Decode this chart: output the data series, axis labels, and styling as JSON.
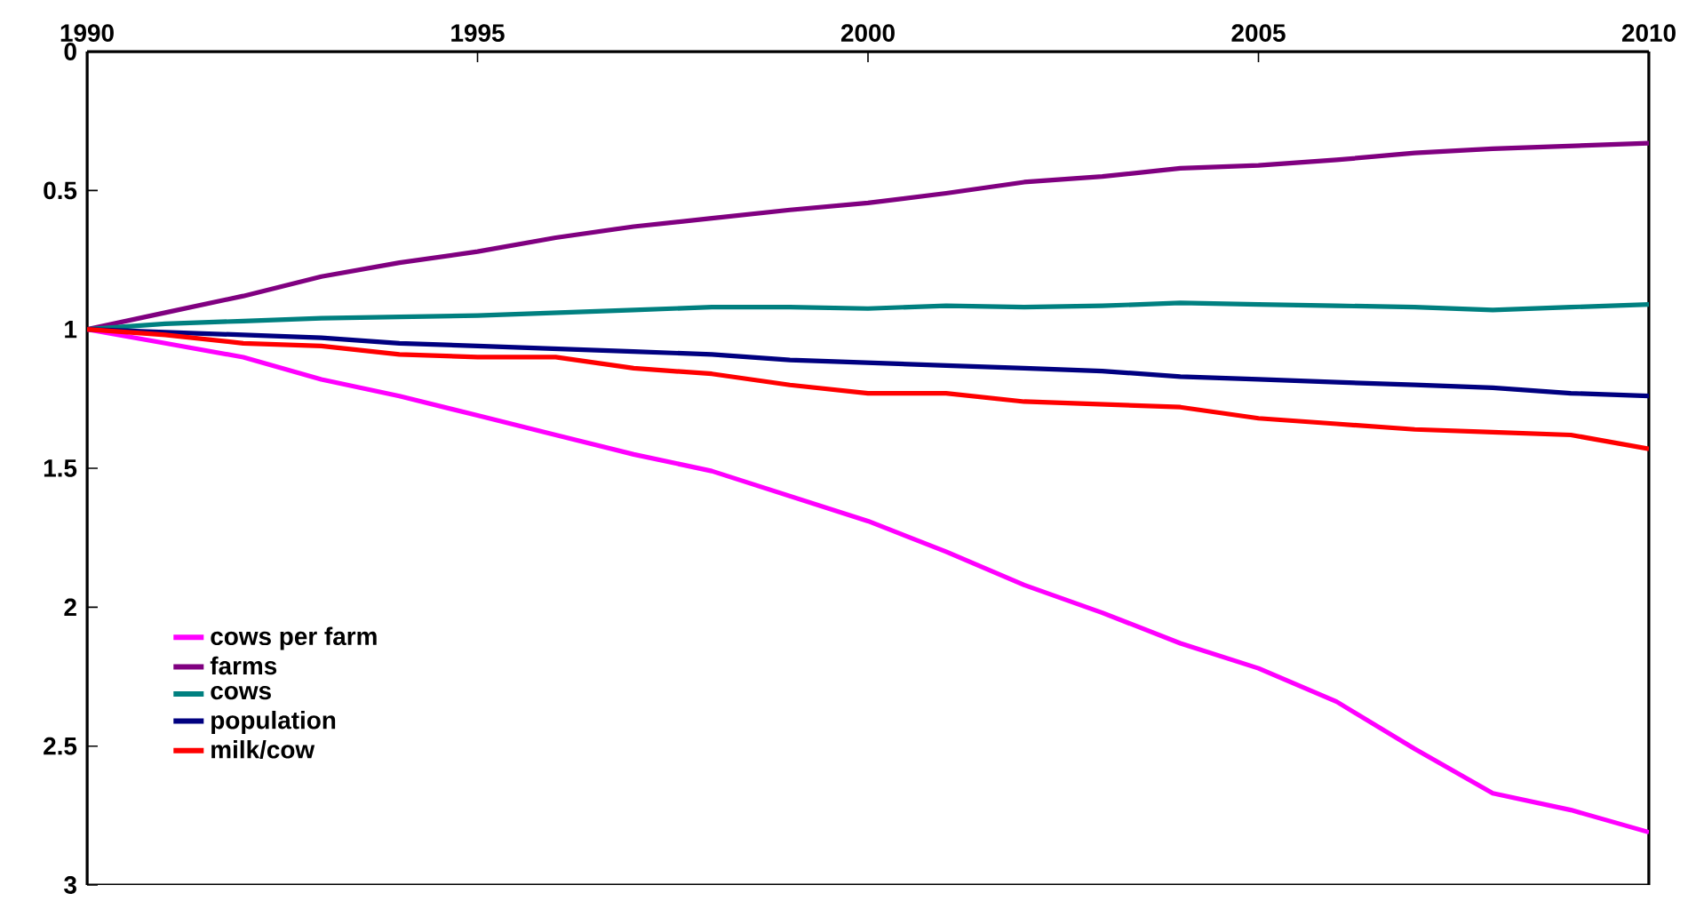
{
  "chart_data": {
    "type": "line",
    "x": [
      1990,
      1991,
      1992,
      1993,
      1994,
      1995,
      1996,
      1997,
      1998,
      1999,
      2000,
      2001,
      2002,
      2003,
      2004,
      2005,
      2006,
      2007,
      2008,
      2009,
      2010
    ],
    "series": [
      {
        "name": "cows per farm",
        "color": "#ff00ff",
        "values": [
          1.0,
          1.05,
          1.1,
          1.18,
          1.24,
          1.31,
          1.38,
          1.45,
          1.51,
          1.6,
          1.69,
          1.8,
          1.92,
          2.02,
          2.13,
          2.22,
          2.34,
          2.51,
          2.67,
          2.73,
          2.81
        ]
      },
      {
        "name": "farms",
        "color": "#800080",
        "values": [
          1.0,
          0.94,
          0.88,
          0.81,
          0.76,
          0.72,
          0.67,
          0.63,
          0.6,
          0.57,
          0.545,
          0.51,
          0.47,
          0.45,
          0.42,
          0.41,
          0.39,
          0.365,
          0.35,
          0.34,
          0.33
        ]
      },
      {
        "name": "cows",
        "color": "#008080",
        "values": [
          1.0,
          0.98,
          0.97,
          0.96,
          0.955,
          0.95,
          0.94,
          0.93,
          0.92,
          0.92,
          0.925,
          0.915,
          0.92,
          0.915,
          0.905,
          0.91,
          0.915,
          0.92,
          0.93,
          0.92,
          0.91
        ]
      },
      {
        "name": "population",
        "color": "#000080",
        "values": [
          1.0,
          1.01,
          1.02,
          1.03,
          1.05,
          1.06,
          1.07,
          1.08,
          1.09,
          1.11,
          1.12,
          1.13,
          1.14,
          1.15,
          1.17,
          1.18,
          1.19,
          1.2,
          1.21,
          1.23,
          1.24
        ]
      },
      {
        "name": "milk/cow",
        "color": "#ff0000",
        "values": [
          1.0,
          1.02,
          1.05,
          1.06,
          1.09,
          1.1,
          1.1,
          1.14,
          1.16,
          1.2,
          1.23,
          1.23,
          1.26,
          1.27,
          1.28,
          1.32,
          1.34,
          1.36,
          1.37,
          1.38,
          1.43
        ]
      }
    ],
    "xlim": [
      1990,
      2010
    ],
    "xticks": [
      1990,
      1995,
      2000,
      2005,
      2010
    ],
    "ylim": [
      3,
      0
    ],
    "yticks": [
      0,
      0.5,
      1,
      1.5,
      2,
      2.5,
      3
    ],
    "legend": "bottom left",
    "grid": false,
    "marker": "none",
    "line_style": "solid"
  }
}
